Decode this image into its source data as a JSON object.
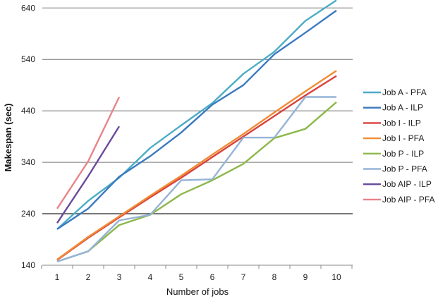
{
  "chart_data": {
    "type": "line",
    "xlabel": "Number of jobs",
    "ylabel": "Makespan (sec)",
    "x": [
      1,
      2,
      3,
      4,
      5,
      6,
      7,
      8,
      9,
      10
    ],
    "ylim": [
      140,
      650
    ],
    "yticks": [
      140,
      240,
      340,
      440,
      540,
      640
    ],
    "grid": "horizontal",
    "legend_position": "right",
    "series": [
      {
        "name": "Job A - PFA",
        "color": "#4bacc6",
        "values": [
          210,
          265,
          310,
          368,
          412,
          455,
          512,
          555,
          615,
          655
        ]
      },
      {
        "name": "Job A - ILP",
        "color": "#3a7abf",
        "values": [
          210,
          250,
          312,
          352,
          398,
          452,
          490,
          550,
          592,
          635
        ]
      },
      {
        "name": "Job I - ILP",
        "color": "#d9423c",
        "values": [
          150,
          193,
          233,
          272,
          310,
          350,
          390,
          430,
          470,
          508
        ]
      },
      {
        "name": "Job I - PFA",
        "color": "#f08c35",
        "values": [
          151,
          195,
          235,
          275,
          314,
          355,
          395,
          437,
          478,
          518
        ]
      },
      {
        "name": "Job P - ILP",
        "color": "#8db84a",
        "values": [
          147,
          167,
          218,
          238,
          278,
          305,
          337,
          387,
          405,
          457
        ]
      },
      {
        "name": "Job P - PFA",
        "color": "#95b3d7",
        "values": [
          147,
          167,
          227,
          238,
          305,
          307,
          388,
          388,
          467,
          467
        ]
      },
      {
        "name": "Job AIP - ILP",
        "color": "#6a4a9c",
        "values": [
          222,
          313,
          410,
          null,
          null,
          null,
          null,
          null,
          null,
          null
        ]
      },
      {
        "name": "Job AIP - PFA",
        "color": "#e8848a",
        "values": [
          250,
          342,
          467,
          null,
          null,
          null,
          null,
          null,
          null,
          null
        ]
      }
    ]
  }
}
